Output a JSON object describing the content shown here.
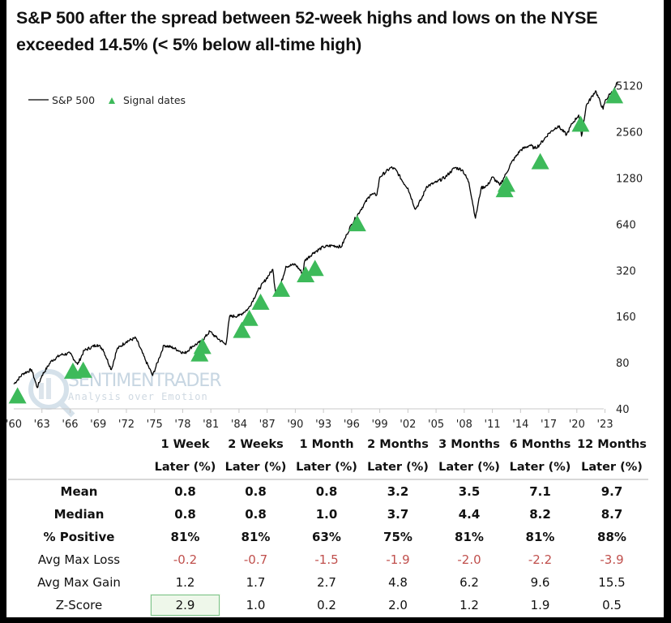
{
  "title": "S&P 500 after the spread between 52-week highs and lows on the NYSE exceeded 14.5% (< 5% below all-time high)",
  "watermark": {
    "brand": "SENTIMENTRADER",
    "tagline": "Analysis over Emotion"
  },
  "chart_data": {
    "type": "line",
    "title": "S&P 500 after the spread between 52-week highs and lows on the NYSE exceeded 14.5% (< 5% below all-time high)",
    "xlabel": "",
    "ylabel": "",
    "yscale": "log2",
    "ylim": [
      40,
      6000
    ],
    "xlim": [
      1960,
      2024.5
    ],
    "grid": false,
    "legend_position": "top-left",
    "legend": [
      "S&P 500",
      "Signal dates"
    ],
    "y_ticks": [
      40,
      80,
      160,
      320,
      640,
      1280,
      2560,
      5120
    ],
    "x_ticks": [
      "'60",
      "'63",
      "'66",
      "'69",
      "'72",
      "'75",
      "'78",
      "'81",
      "'84",
      "'87",
      "'90",
      "'93",
      "'96",
      "'99",
      "'02",
      "'05",
      "'08",
      "'11",
      "'14",
      "'17",
      "'20",
      "'23"
    ],
    "x_tick_years": [
      1960,
      1963,
      1966,
      1969,
      1972,
      1975,
      1978,
      1981,
      1984,
      1987,
      1990,
      1993,
      1996,
      1999,
      2002,
      2005,
      2008,
      2011,
      2014,
      2017,
      2020,
      2023
    ],
    "series": [
      {
        "name": "S&P 500",
        "color": "#000000",
        "x": [
          1960,
          1961,
          1961.9,
          1962.5,
          1963,
          1964,
          1965,
          1966,
          1966.8,
          1967.5,
          1968.9,
          1969.5,
          1970.4,
          1971,
          1972,
          1973,
          1974,
          1974.8,
          1975.5,
          1976,
          1977,
          1978.2,
          1979,
          1980,
          1980.9,
          1981.5,
          1982.6,
          1983,
          1984,
          1985,
          1986,
          1987.6,
          1987.9,
          1988.5,
          1989,
          1990,
          1990.8,
          1991,
          1992,
          1993,
          1994,
          1994.9,
          1995.5,
          1996,
          1997,
          1998,
          1998.7,
          1999,
          2000.2,
          2000.7,
          2001.5,
          2002,
          2002.8,
          2003.5,
          2004,
          2005,
          2006,
          2007,
          2007.8,
          2008.5,
          2009.2,
          2009.8,
          2010.5,
          2011,
          2011.8,
          2012.5,
          2013,
          2014,
          2015,
          2015.5,
          2016,
          2017,
          2018,
          2018.9,
          2019.5,
          2020.2,
          2020.5,
          2021,
          2022,
          2022.8,
          2023,
          2023.5,
          2024,
          2024.3
        ],
        "y": [
          58,
          68,
          72,
          55,
          66,
          82,
          90,
          92,
          78,
          96,
          105,
          98,
          72,
          98,
          110,
          116,
          84,
          66,
          86,
          104,
          100,
          92,
          102,
          110,
          128,
          118,
          105,
          160,
          162,
          180,
          235,
          325,
          230,
          265,
          340,
          350,
          305,
          370,
          420,
          455,
          465,
          455,
          550,
          640,
          800,
          1000,
          1000,
          1300,
          1500,
          1450,
          1200,
          1100,
          800,
          950,
          1130,
          1200,
          1300,
          1500,
          1450,
          1200,
          700,
          1100,
          1150,
          1300,
          1150,
          1380,
          1600,
          1950,
          2100,
          2000,
          2100,
          2500,
          2800,
          2450,
          2900,
          3300,
          2400,
          3800,
          4750,
          3600,
          4050,
          4500,
          4800,
          5400
        ]
      },
      {
        "name": "Signal dates",
        "type": "scatter",
        "marker": "triangle",
        "color": "#3dba5a",
        "x": [
          1960.4,
          1966.3,
          1967.4,
          1979.8,
          1980.1,
          1984.3,
          1985.1,
          1986.3,
          1988.5,
          1991.1,
          1992.1,
          1996.6,
          2012.3,
          2012.5,
          2016.1,
          2020.4,
          2024.0
        ],
        "y": [
          49,
          71,
          72,
          92,
          103,
          131,
          157,
          200,
          243,
          302,
          332,
          650,
          1085,
          1175,
          1650,
          2900,
          4440
        ]
      }
    ]
  },
  "table": {
    "columns": [
      {
        "line1": "1 Week",
        "line2": "Later (%)"
      },
      {
        "line1": "2 Weeks",
        "line2": "Later (%)"
      },
      {
        "line1": "1 Month",
        "line2": "Later (%)"
      },
      {
        "line1": "2 Months",
        "line2": "Later (%)"
      },
      {
        "line1": "3 Months",
        "line2": "Later (%)"
      },
      {
        "line1": "6 Months",
        "line2": "Later (%)"
      },
      {
        "line1": "12 Months",
        "line2": "Later (%)"
      }
    ],
    "rows": [
      {
        "label": "Mean",
        "values": [
          "0.8",
          "0.8",
          "0.8",
          "3.2",
          "3.5",
          "7.1",
          "9.7"
        ]
      },
      {
        "label": "Median",
        "values": [
          "0.8",
          "0.8",
          "1.0",
          "3.7",
          "4.4",
          "8.2",
          "8.7"
        ]
      },
      {
        "label": "% Positive",
        "values": [
          "81%",
          "81%",
          "63%",
          "75%",
          "81%",
          "81%",
          "88%"
        ]
      },
      {
        "label": "Avg Max Loss",
        "values": [
          "-0.2",
          "-0.7",
          "-1.5",
          "-1.9",
          "-2.0",
          "-2.2",
          "-3.9"
        ]
      },
      {
        "label": "Avg Max Gain",
        "values": [
          "1.2",
          "1.7",
          "2.7",
          "4.8",
          "6.2",
          "9.6",
          "15.5"
        ]
      },
      {
        "label": "Z-Score",
        "values": [
          "2.9",
          "1.0",
          "0.2",
          "2.0",
          "1.2",
          "1.9",
          "0.5"
        ]
      }
    ],
    "highlighted_cell": {
      "row": "Z-Score",
      "column": "1 Week"
    }
  },
  "colors": {
    "line": "#000000",
    "signal": "#3dba5a",
    "negative": "#c0504d",
    "highlight_fill": "#eef7ea",
    "highlight_border": "#7cc38a",
    "watermark": "#c7d6e2"
  }
}
